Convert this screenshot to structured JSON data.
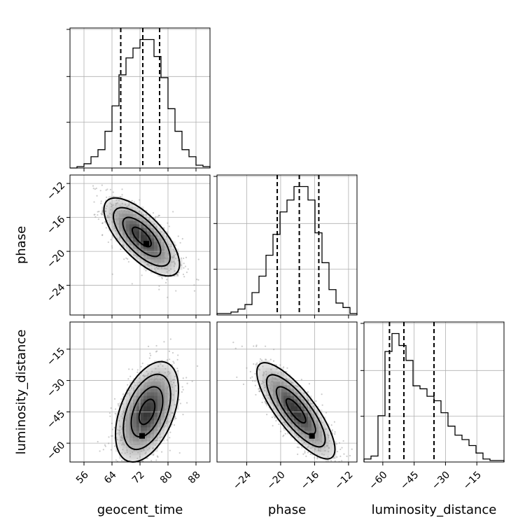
{
  "chart_data": {
    "type": "corner",
    "parameters": [
      "geocent_time",
      "phase",
      "luminosity_distance"
    ],
    "colors": {
      "line": "#000000",
      "grid": "#b0b0b0",
      "scatter": "#9a9a9a",
      "density_dark": "#000000",
      "density_light": "#ffffff"
    },
    "grid": true,
    "axes": {
      "geocent_time": {
        "range": [
          52,
          92
        ],
        "ticks": [
          56,
          64,
          72,
          80,
          88
        ],
        "tick_labels": [
          "56",
          "64",
          "72",
          "80",
          "88"
        ]
      },
      "phase": {
        "range": [
          -27.5,
          -11
        ],
        "ticks": [
          -24,
          -20,
          -16,
          -12
        ],
        "tick_labels": [
          "−24",
          "−20",
          "−16",
          "−12"
        ]
      },
      "luminosity_distance": {
        "range": [
          -69,
          -2
        ],
        "ticks": [
          -60,
          -45,
          -30,
          -15
        ],
        "tick_labels": [
          "−60",
          "−45",
          "−30",
          "−15"
        ]
      }
    },
    "diagonal": [
      {
        "param": "geocent_time",
        "bin_edges": [
          52,
          54,
          56,
          58,
          60,
          62,
          64,
          66,
          68,
          70,
          72,
          74,
          76,
          78,
          80,
          82,
          84,
          86,
          88,
          90,
          92
        ],
        "counts": [
          0,
          1,
          3,
          8,
          13,
          26,
          44,
          66,
          78,
          85,
          91,
          91,
          79,
          64,
          42,
          26,
          13,
          8,
          2,
          1
        ],
        "quantiles": [
          66.5,
          72.8,
          77.6
        ]
      },
      {
        "param": "phase",
        "bin_edges": [
          -27.5,
          -26.675,
          -25.85,
          -25.025,
          -24.2,
          -23.375,
          -22.55,
          -21.725,
          -20.9,
          -20.075,
          -19.25,
          -18.425,
          -17.6,
          -16.775,
          -15.95,
          -15.125,
          -14.3,
          -13.475,
          -12.65,
          -11.825,
          -11
        ],
        "counts": [
          1,
          1,
          2,
          4,
          7,
          15,
          26,
          40,
          54,
          69,
          77,
          86,
          86,
          77,
          55,
          35,
          17,
          8,
          5,
          1
        ],
        "quantiles": [
          -20.4,
          -17.8,
          -15.5
        ]
      },
      {
        "param": "luminosity_distance",
        "bin_edges": [
          -69,
          -65.65,
          -62.3,
          -58.95,
          -55.6,
          -52.25,
          -48.9,
          -45.55,
          -42.2,
          -38.85,
          -35.5,
          -32.15,
          -28.8,
          -25.45,
          -22.1,
          -18.75,
          -15.4,
          -12.05,
          -8.7,
          -5.35,
          -2
        ],
        "counts": [
          2,
          4,
          31,
          74,
          86,
          78,
          68,
          51,
          49,
          44,
          41,
          33,
          24,
          18,
          15,
          11,
          6,
          2,
          1,
          1
        ],
        "quantiles": [
          -56.8,
          -49.9,
          -35.5
        ]
      }
    ],
    "pairs": [
      {
        "x": "geocent_time",
        "y": "phase",
        "center": [
          72.5,
          -18.3
        ],
        "spread": [
          5.4,
          2.3
        ],
        "correlation": -0.7,
        "contour_levels": [
          0.118,
          0.393,
          0.675,
          0.865
        ],
        "mode": [
          73.8,
          -19.1
        ]
      },
      {
        "x": "geocent_time",
        "y": "luminosity_distance",
        "center": [
          74,
          -45
        ],
        "spread": [
          4.5,
          12
        ],
        "correlation": 0.45,
        "contour_levels": [
          0.118,
          0.393,
          0.675,
          0.865
        ],
        "mode": [
          72.6,
          -56.5
        ]
      },
      {
        "x": "phase",
        "y": "luminosity_distance",
        "center": [
          -18.2,
          -44.5
        ],
        "spread": [
          2.3,
          11.5
        ],
        "correlation": -0.8,
        "contour_levels": [
          0.118,
          0.393,
          0.675,
          0.865
        ],
        "mode": [
          -16.3,
          -56.5
        ]
      }
    ],
    "xlabels": [
      "geocent_time",
      "phase",
      "luminosity_distance"
    ],
    "ylabels": [
      "",
      "phase",
      "luminosity_distance"
    ]
  }
}
